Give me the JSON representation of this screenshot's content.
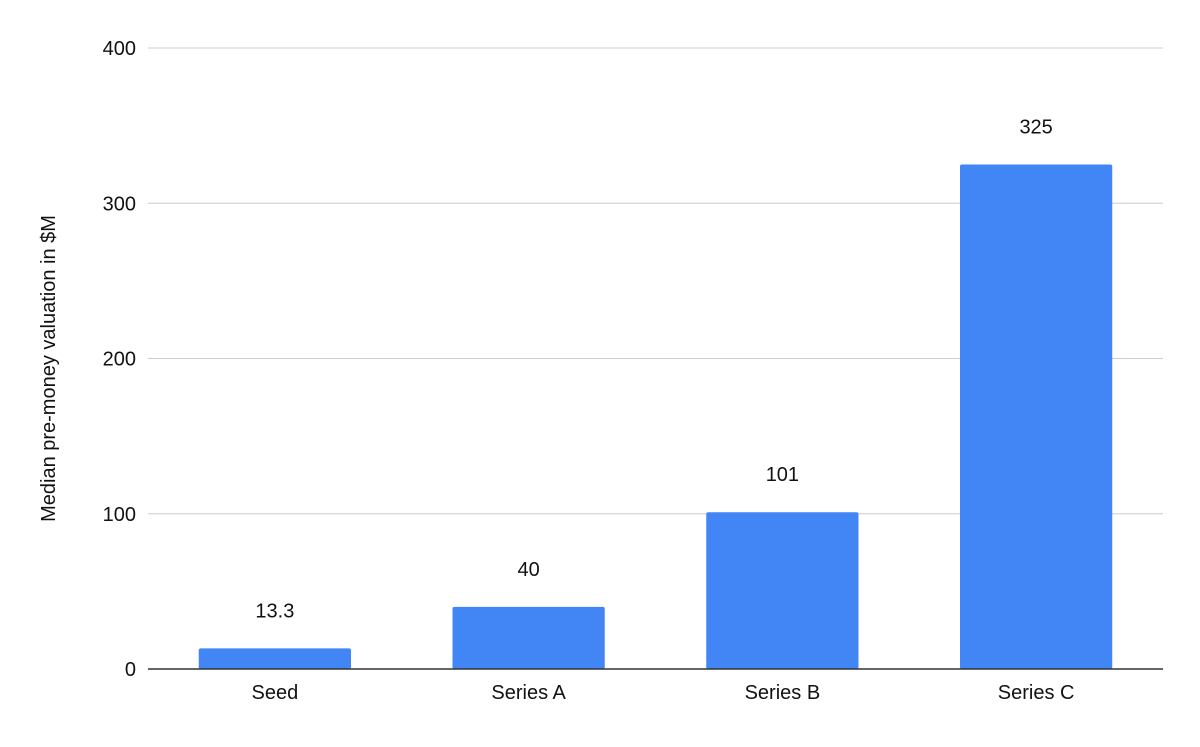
{
  "chart_data": {
    "type": "bar",
    "categories": [
      "Seed",
      "Series A",
      "Series B",
      "Series C"
    ],
    "series": [
      {
        "values": [
          13.3,
          40,
          101,
          325
        ],
        "color": "#4285f4"
      }
    ],
    "data_labels": [
      "13.3",
      "40",
      "101",
      "325"
    ],
    "title": "",
    "xlabel": "",
    "ylabel": "Median pre-money valuation in $M",
    "ylim": [
      0,
      400
    ],
    "yticks": [
      0,
      100,
      200,
      300,
      400
    ],
    "ytick_labels": [
      "0",
      "100",
      "200",
      "300",
      "400"
    ],
    "grid": true,
    "legend": "none"
  }
}
